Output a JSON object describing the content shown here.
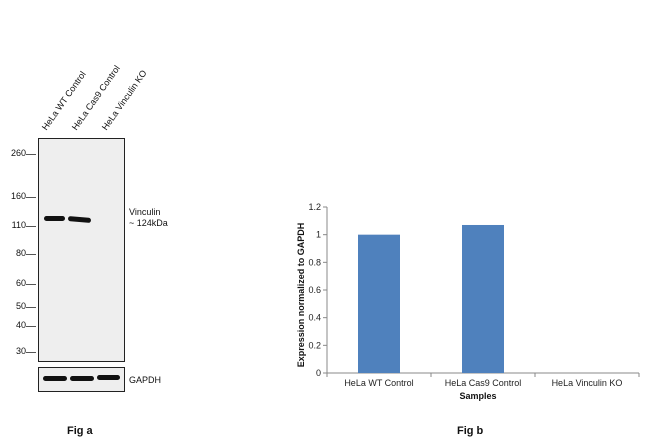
{
  "fig_a": {
    "caption": "Fig a",
    "lanes": [
      "HeLa WT Control",
      "HeLa Cas9 Control",
      "HeLa Vinculin KO"
    ],
    "markers_kda": [
      "260",
      "160",
      "110",
      "80",
      "60",
      "50",
      "40",
      "30"
    ],
    "target_label_1": "Vinculin",
    "target_label_2": "~ 124kDa",
    "loading_control": "GAPDH"
  },
  "fig_b": {
    "caption": "Fig b"
  },
  "chart_data": {
    "type": "bar",
    "title": "",
    "categories": [
      "HeLa WT Control",
      "HeLa Cas9 Control",
      "HeLa Vinculin KO"
    ],
    "values": [
      1.0,
      1.07,
      0
    ],
    "xlabel": "Samples",
    "ylabel": "Expression  normalized to GAPDH",
    "ylim": [
      0,
      1.2
    ],
    "yticks": [
      "0",
      "0.2",
      "0.4",
      "0.6",
      "0.8",
      "1",
      "1.2"
    ],
    "grid": false,
    "bar_color": "#4f81bd"
  }
}
